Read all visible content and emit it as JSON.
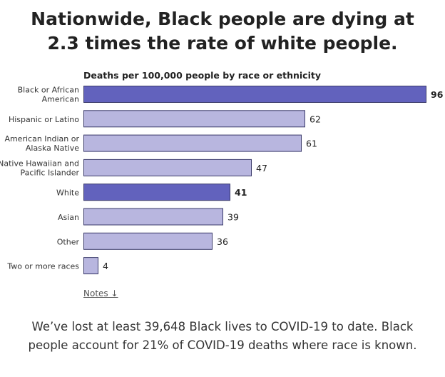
{
  "header": {
    "title_line1": "Nationwide, Black people are dying at",
    "title_line2": "2.3 times the rate of white people."
  },
  "chart_data": {
    "type": "bar",
    "orientation": "horizontal",
    "title": "Deaths per 100,000 people by race or ethnicity",
    "categories": [
      [
        "Black or African",
        "American"
      ],
      [
        "Hispanic or Latino"
      ],
      [
        "American Indian or",
        "Alaska Native"
      ],
      [
        "Native Hawaiian and",
        "Pacific Islander"
      ],
      [
        "White"
      ],
      [
        "Asian"
      ],
      [
        "Other"
      ],
      [
        "Two or more races"
      ]
    ],
    "values": [
      96,
      62,
      61,
      47,
      41,
      39,
      36,
      4
    ],
    "highlighted": [
      true,
      false,
      false,
      false,
      true,
      false,
      false,
      false
    ],
    "xlim": [
      0,
      96
    ],
    "grid": false,
    "colors": {
      "highlight": "#6262bd",
      "normal": "#b8b6df",
      "stroke": "#3a3a6a"
    }
  },
  "notes": {
    "label": "Notes ↓"
  },
  "summary": {
    "line1": "We’ve lost at least 39,648 Black lives to COVID-19 to date. Black",
    "line2": "people account for 21% of COVID-19 deaths where race is known."
  }
}
